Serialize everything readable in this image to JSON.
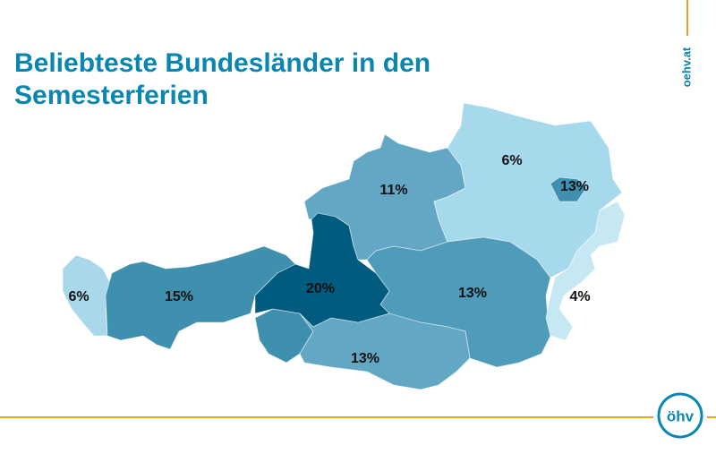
{
  "title_lines": [
    "Beliebteste Bundesländer in den",
    "Semesterferien"
  ],
  "side_text": "oehv.at",
  "logo_text": "öhv",
  "map": {
    "regions": [
      {
        "value": 6,
        "value_label": "6%",
        "color": "#a8d8ea"
      },
      {
        "value": 15,
        "value_label": "15%",
        "color": "#3f8fae"
      },
      {
        "value": 20,
        "value_label": "20%",
        "color": "#005b7f"
      },
      {
        "value": 11,
        "value_label": "11%",
        "color": "#63a7c4"
      },
      {
        "value": 6,
        "value_label": "6%",
        "color": "#a6d9ec"
      },
      {
        "value": 13,
        "value_label": "13%",
        "color": "#3f8fae"
      },
      {
        "value": 13,
        "value_label": "13%",
        "color": "#4f9cba"
      },
      {
        "value": 13,
        "value_label": "13%",
        "color": "#62a8c4"
      },
      {
        "value": 4,
        "value_label": "4%",
        "color": "#c5e8f3"
      }
    ]
  }
}
